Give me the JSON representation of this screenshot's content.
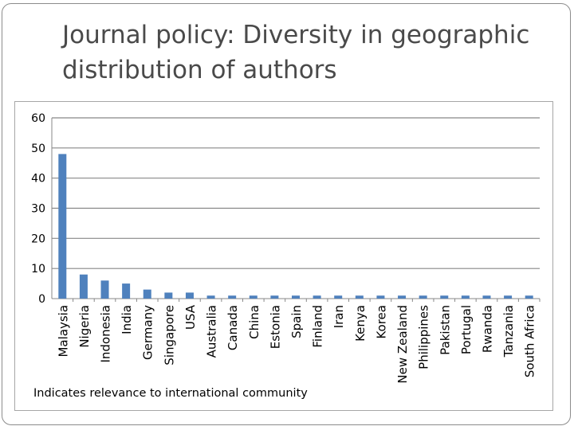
{
  "slide": {
    "title_line1": "Journal policy: Diversity in geographic",
    "title_line2": "distribution of authors",
    "annotation": "Indicates relevance to international community"
  },
  "colors": {
    "bar": "#4f81bd",
    "grid": "#878787",
    "axis_text": "#000000",
    "title": "#4a4a4a"
  },
  "chart_data": {
    "type": "bar",
    "title": "",
    "xlabel": "",
    "ylabel": "",
    "ylim": [
      0,
      60
    ],
    "yticks": [
      0,
      10,
      20,
      30,
      40,
      50,
      60
    ],
    "grid": true,
    "legend": "none",
    "categories": [
      "Malaysia",
      "Nigeria",
      "Indonesia",
      "India",
      "Germany",
      "Singapore",
      "USA",
      "Australia",
      "Canada",
      "China",
      "Estonia",
      "Spain",
      "Finland",
      "Iran",
      "Kenya",
      "Korea",
      "New Zealand",
      "Philippines",
      "Pakistan",
      "Portugal",
      "Rwanda",
      "Tanzania",
      "South Africa"
    ],
    "values": [
      48,
      8,
      6,
      5,
      3,
      2,
      2,
      1,
      1,
      1,
      1,
      1,
      1,
      1,
      1,
      1,
      1,
      1,
      1,
      1,
      1,
      1,
      1
    ]
  }
}
